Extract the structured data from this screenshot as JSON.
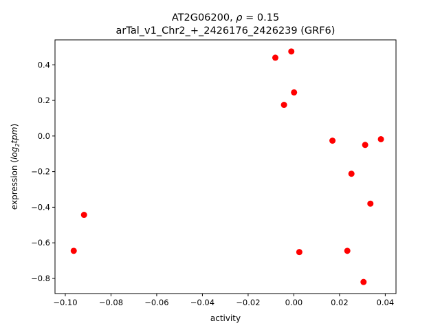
{
  "chart_data": {
    "type": "scatter",
    "title_line1_prefix": "AT2G06200, ",
    "title_line1_rho": "ρ",
    "title_line1_suffix": " = 0.15",
    "title_line2": "arTal_v1_Chr2_+_2426176_2426239 (GRF6)",
    "xlabel": "activity",
    "ylabel_prefix": "expression (",
    "ylabel_log": "log",
    "ylabel_sub": "2",
    "ylabel_tpm": "tpm",
    "ylabel_suffix": ")",
    "xlim": [
      -0.1045,
      0.0447
    ],
    "ylim": [
      -0.885,
      0.54
    ],
    "xticks": [
      -0.1,
      -0.08,
      -0.06,
      -0.04,
      -0.02,
      0.0,
      0.02,
      0.04
    ],
    "xtick_labels": [
      "−0.10",
      "−0.08",
      "−0.06",
      "−0.04",
      "−0.02",
      "0.00",
      "0.02",
      "0.04"
    ],
    "yticks": [
      0.4,
      0.2,
      0.0,
      -0.2,
      -0.4,
      -0.6,
      -0.8
    ],
    "ytick_labels": [
      "0.4",
      "0.2",
      "0.0",
      "−0.2",
      "−0.4",
      "−0.6",
      "−0.8"
    ],
    "grid": false,
    "marker_color": "#ff0000",
    "points": [
      {
        "x": -0.0963,
        "y": -0.645
      },
      {
        "x": -0.0918,
        "y": -0.443
      },
      {
        "x": -0.0081,
        "y": 0.44
      },
      {
        "x": -0.0011,
        "y": 0.475
      },
      {
        "x": -0.0043,
        "y": 0.175
      },
      {
        "x": 0.0001,
        "y": 0.245
      },
      {
        "x": 0.0024,
        "y": -0.652
      },
      {
        "x": 0.0169,
        "y": -0.026
      },
      {
        "x": 0.0234,
        "y": -0.645
      },
      {
        "x": 0.0252,
        "y": -0.212
      },
      {
        "x": 0.0305,
        "y": -0.82
      },
      {
        "x": 0.0312,
        "y": -0.05
      },
      {
        "x": 0.0335,
        "y": -0.38
      },
      {
        "x": 0.0381,
        "y": -0.018
      }
    ]
  }
}
